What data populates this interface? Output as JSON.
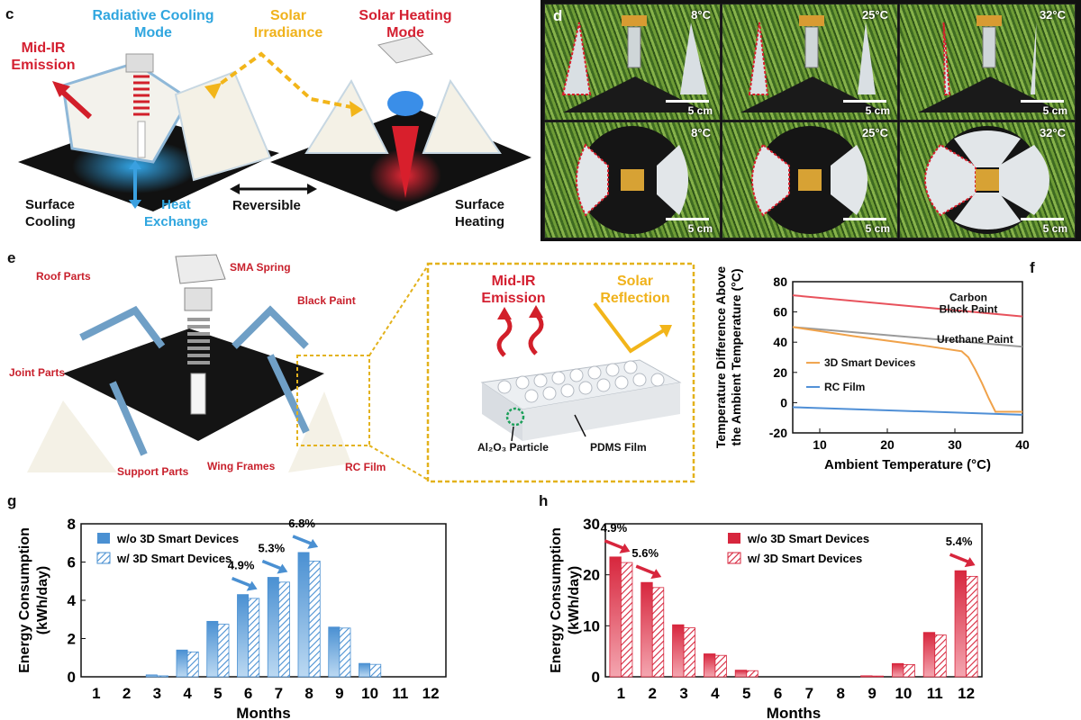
{
  "panel_c": {
    "label": "c",
    "radiative_mode": "Radiative Cooling\nMode",
    "solar_irradiance": "Solar\nIrradiance",
    "solar_heating_mode": "Solar Heating\nMode",
    "mid_ir": "Mid-IR\nEmission",
    "surface_cooling": "Surface\nCooling",
    "heat_exchange": "Heat\nExchange",
    "reversible": "Reversible",
    "surface_heating": "Surface\nHeating"
  },
  "panel_d": {
    "label": "d",
    "temps": [
      "8°C",
      "25°C",
      "32°C",
      "8°C",
      "25°C",
      "32°C"
    ],
    "scale": "5 cm"
  },
  "panel_e": {
    "label": "e",
    "roof_parts": "Roof Parts",
    "sma_spring": "SMA Spring",
    "black_paint": "Black Paint",
    "joint_parts": "Joint Parts",
    "support_parts": "Support Parts",
    "wing_frames": "Wing Frames",
    "rc_film": "RC Film",
    "mid_ir": "Mid-IR\nEmission",
    "solar_reflection": "Solar\nReflection",
    "particle": "Al₂O₃ Particle",
    "pdms": "PDMS Film"
  },
  "chart_data": [
    {
      "id": "f",
      "label": "f",
      "type": "line",
      "xlabel": "Ambient Temperature (°C)",
      "ylabel": "Temperature Difference Above\nthe Ambient Temperature (°C)",
      "xlim": [
        6,
        40
      ],
      "ylim": [
        -20,
        80
      ],
      "xticks": [
        10,
        20,
        30,
        40
      ],
      "yticks": [
        -20,
        0,
        20,
        40,
        60,
        80
      ],
      "series": [
        {
          "name": "Carbon\nBlack Paint",
          "color": "#e8525c",
          "x": [
            6,
            40
          ],
          "y": [
            71,
            57
          ]
        },
        {
          "name": "Urethane Paint",
          "color": "#9a9a9a",
          "x": [
            6,
            40
          ],
          "y": [
            50,
            37
          ]
        },
        {
          "name": "3D Smart Devices",
          "color": "#f0a24a",
          "x": [
            6,
            15,
            25,
            31,
            32,
            33,
            34,
            35,
            36,
            40
          ],
          "y": [
            50,
            44,
            38,
            34,
            30,
            22,
            13,
            3,
            -6,
            -6
          ]
        },
        {
          "name": "RC Film",
          "color": "#4f8fd6",
          "x": [
            6,
            40
          ],
          "y": [
            -3,
            -8
          ]
        }
      ]
    },
    {
      "id": "g",
      "label": "g",
      "type": "bar",
      "xlabel": "Months",
      "ylabel": "Energy Consumption\n(kWh/day)",
      "ylim": [
        0,
        8
      ],
      "yticks": [
        0,
        2,
        4,
        6,
        8
      ],
      "categories": [
        "1",
        "2",
        "3",
        "4",
        "5",
        "6",
        "7",
        "8",
        "9",
        "10",
        "11",
        "12"
      ],
      "color": "#4a90d2",
      "series": [
        {
          "name": "w/o 3D Smart Devices",
          "values": [
            0,
            0,
            0.1,
            1.4,
            2.9,
            4.3,
            5.2,
            6.5,
            2.6,
            0.7,
            0,
            0
          ]
        },
        {
          "name": "w/ 3D Smart Devices",
          "values": [
            0,
            0,
            0.05,
            1.3,
            2.75,
            4.1,
            4.95,
            6.05,
            2.55,
            0.65,
            0,
            0
          ]
        }
      ],
      "annotations": [
        {
          "text": "4.9%",
          "month": 6
        },
        {
          "text": "5.3%",
          "month": 7
        },
        {
          "text": "6.8%",
          "month": 8
        }
      ]
    },
    {
      "id": "h",
      "label": "h",
      "type": "bar",
      "xlabel": "Months",
      "ylabel": "Energy Consumption\n(kWh/day)",
      "ylim": [
        0,
        30
      ],
      "yticks": [
        0,
        10,
        20,
        30
      ],
      "categories": [
        "1",
        "2",
        "3",
        "4",
        "5",
        "6",
        "7",
        "8",
        "9",
        "10",
        "11",
        "12"
      ],
      "color": "#d7263d",
      "series": [
        {
          "name": "w/o 3D Smart Devices",
          "values": [
            23.5,
            18.5,
            10.2,
            4.5,
            1.3,
            0,
            0,
            0,
            0.2,
            2.6,
            8.7,
            20.8
          ]
        },
        {
          "name": "w/ 3D Smart Devices",
          "values": [
            22.4,
            17.5,
            9.6,
            4.2,
            1.2,
            0,
            0,
            0,
            0.15,
            2.4,
            8.2,
            19.7
          ]
        }
      ],
      "annotations": [
        {
          "text": "4.9%",
          "month": 1
        },
        {
          "text": "5.6%",
          "month": 2
        },
        {
          "text": "5.4%",
          "month": 12
        }
      ]
    }
  ]
}
